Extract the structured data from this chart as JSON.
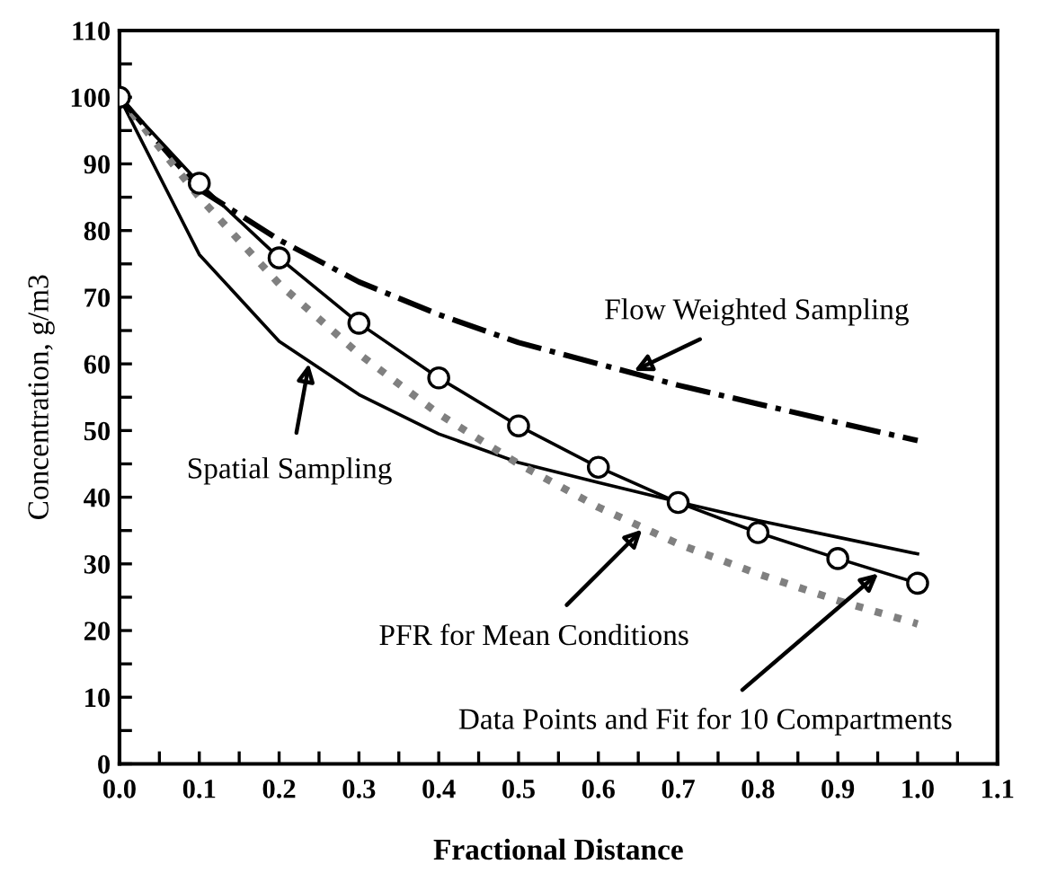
{
  "chart_data": {
    "type": "line",
    "xlabel": "Fractional Distance",
    "ylabel": "Concentration, g/m3",
    "x": [
      0.0,
      0.1,
      0.2,
      0.3,
      0.4,
      0.5,
      0.6,
      0.7,
      0.8,
      0.9,
      1.0
    ],
    "series": [
      {
        "color": "#000000",
        "line_style": "dashdot",
        "marker": "none",
        "values": [
          100,
          86.2,
          78.6,
          72.3,
          67.4,
          63.2,
          60,
          56.8,
          54,
          51.2,
          48.5
        ]
      },
      {
        "color": "#000000",
        "line_style": "solid",
        "marker": "none",
        "values": [
          100,
          76.4,
          63.4,
          55.4,
          49.5,
          45.2,
          42.2,
          39.3,
          36.5,
          34,
          31.5
        ]
      },
      {
        "color": "#808080",
        "line_style": "dotted",
        "marker": "none",
        "values": [
          100,
          85,
          72,
          61.5,
          52.5,
          45,
          38.5,
          33,
          28.5,
          24.5,
          21
        ]
      },
      {
        "color": "#000000",
        "line_style": "solid",
        "marker": "circle",
        "values": [
          100,
          87.1,
          75.9,
          66.1,
          57.9,
          50.7,
          44.5,
          39.2,
          34.7,
          30.8,
          27.1
        ]
      }
    ],
    "xlim": [
      0,
      1.1
    ],
    "xticks": [
      {
        "value": 0.0,
        "label": "0.0"
      },
      {
        "value": 0.05,
        "label": null
      },
      {
        "value": 0.1,
        "label": "0.1"
      },
      {
        "value": 0.15,
        "label": null
      },
      {
        "value": 0.2,
        "label": "0.2"
      },
      {
        "value": 0.25,
        "label": null
      },
      {
        "value": 0.3,
        "label": "0.3"
      },
      {
        "value": 0.35,
        "label": null
      },
      {
        "value": 0.4,
        "label": "0.4"
      },
      {
        "value": 0.45,
        "label": null
      },
      {
        "value": 0.5,
        "label": "0.5"
      },
      {
        "value": 0.55,
        "label": null
      },
      {
        "value": 0.6,
        "label": "0.6"
      },
      {
        "value": 0.65,
        "label": null
      },
      {
        "value": 0.7,
        "label": "0.7"
      },
      {
        "value": 0.75,
        "label": null
      },
      {
        "value": 0.8,
        "label": "0.8"
      },
      {
        "value": 0.85,
        "label": null
      },
      {
        "value": 0.9,
        "label": "0.9"
      },
      {
        "value": 0.95,
        "label": null
      },
      {
        "value": 1.0,
        "label": "1.0"
      },
      {
        "value": 1.05,
        "label": null
      },
      {
        "value": 1.1,
        "label": "1.1"
      }
    ],
    "ylim": [
      0,
      110
    ],
    "yticks": [
      0,
      {
        "value": 5,
        "label": null
      },
      10,
      {
        "value": 15,
        "label": null
      },
      20,
      {
        "value": 25,
        "label": null
      },
      30,
      {
        "value": 35,
        "label": null
      },
      40,
      {
        "value": 45,
        "label": null
      },
      50,
      {
        "value": 55,
        "label": null
      },
      60,
      {
        "value": 65,
        "label": null
      },
      70,
      {
        "value": 75,
        "label": null
      },
      80,
      {
        "value": 85,
        "label": null
      },
      90,
      {
        "value": 95,
        "label": null
      },
      100,
      {
        "value": 105,
        "label": null
      },
      110
    ],
    "grid": false,
    "legend": false,
    "annotations": [
      {
        "text": "Flow Weighted Sampling",
        "x": 0.642,
        "y": 58.8
      },
      {
        "text": "Spatial Sampling",
        "x": 0.238,
        "y": 60.4
      },
      {
        "text": "PFR for Mean Conditions",
        "x": 0.657,
        "y": 35.4
      },
      {
        "text": "Data Points and Fit for 10 Compartments",
        "x": 0.953,
        "y": 28.8
      }
    ]
  }
}
